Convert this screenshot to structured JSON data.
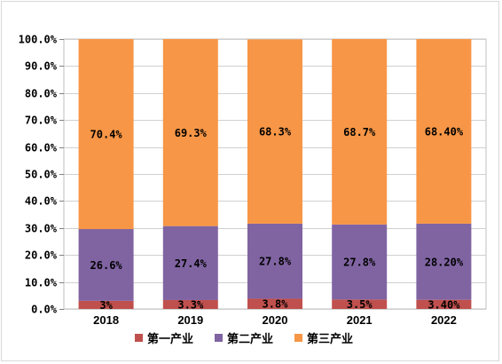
{
  "chart_data": {
    "type": "bar",
    "stacked": true,
    "categories": [
      "2018",
      "2019",
      "2020",
      "2021",
      "2022"
    ],
    "series": [
      {
        "name": "第一产业",
        "color": "#c0504d",
        "values": [
          3.0,
          3.3,
          3.8,
          3.5,
          3.4
        ],
        "labels": [
          "3%",
          "3.3%",
          "3.8%",
          "3.5%",
          "3.40%"
        ]
      },
      {
        "name": "第二产业",
        "color": "#8064a2",
        "values": [
          26.6,
          27.4,
          27.8,
          27.8,
          28.2
        ],
        "labels": [
          "26.6%",
          "27.4%",
          "27.8%",
          "27.8%",
          "28.20%"
        ]
      },
      {
        "name": "第三产业",
        "color": "#f79646",
        "values": [
          70.4,
          69.3,
          68.3,
          68.7,
          68.4
        ],
        "labels": [
          "70.4%",
          "69.3%",
          "68.3%",
          "68.7%",
          "68.40%"
        ]
      }
    ],
    "yticks": [
      "0.0%",
      "10.0%",
      "20.0%",
      "30.0%",
      "40.0%",
      "50.0%",
      "60.0%",
      "70.0%",
      "80.0%",
      "90.0%",
      "100.0%"
    ],
    "ylim": [
      0,
      100
    ],
    "grid": true,
    "legend_position": "bottom",
    "title": "",
    "xlabel": "",
    "ylabel": ""
  }
}
